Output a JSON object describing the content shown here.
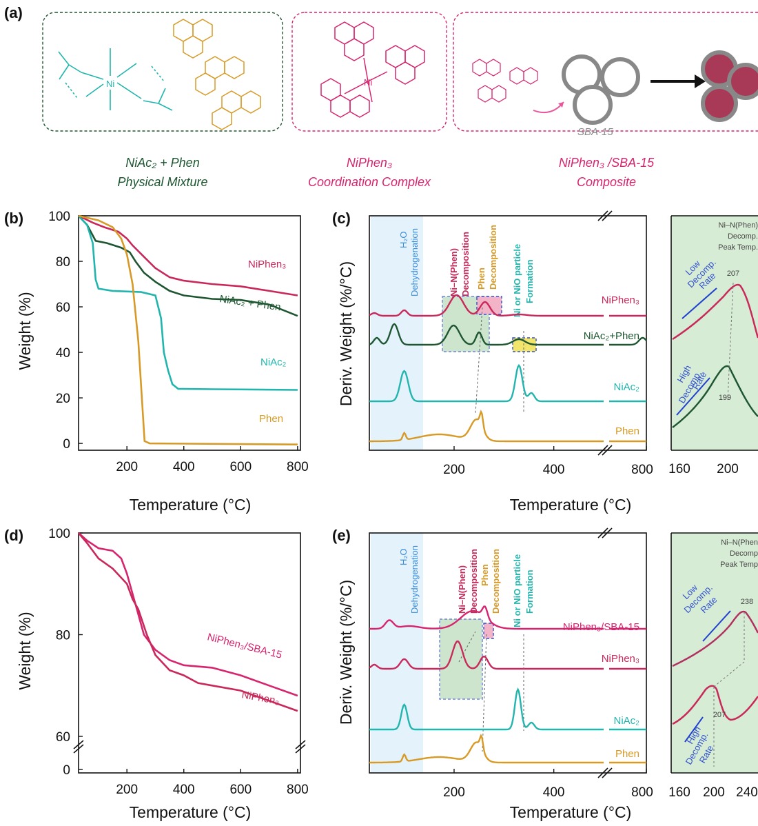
{
  "panels": {
    "a": {
      "label": "(a)",
      "sba_label": "SBA-15",
      "captions": [
        {
          "line1": "NiAc₂ + Phen",
          "line2": "Physical Mixture",
          "color": "#1e5631"
        },
        {
          "line1": "NiPhen₃",
          "line2": "Coordination Complex",
          "color": "#d6246e"
        },
        {
          "line1": "NiPhen₃ /SBA-15",
          "line2": "Composite",
          "color": "#d6246e"
        }
      ]
    },
    "b": {
      "label": "(b)",
      "xlabel": "Temperature (°C)",
      "ylabel": "Weight (%)"
    },
    "c": {
      "label": "(c)",
      "xlabel": "Temperature (°C)",
      "ylabel": "Deriv. Weight (%/°C)",
      "ann_h2o": "H₂O",
      "ann_dehyd": "Dehydrogenation",
      "ann_ninphen1": "Ni–N(Phen)",
      "ann_ninphen2": "Decomposition",
      "ann_phen1": "Phen",
      "ann_phen2": "Decomposition",
      "ann_nio1": "Ni or NiO particle",
      "ann_nio2": "Formation",
      "inset_title": [
        "Ni–N(Phen)",
        "Decomp.",
        "Peak Temp."
      ],
      "inset_low": [
        "Low",
        "Decomp.",
        "Rate"
      ],
      "inset_high": [
        "High",
        "Decomp.",
        "Rate"
      ],
      "inset_peak_top": "207",
      "inset_peak_bottom": "199"
    },
    "d": {
      "label": "(d)",
      "xlabel": "Temperature (°C)",
      "ylabel": "Weight (%)"
    },
    "e": {
      "label": "(e)",
      "xlabel": "Temperature (°C)",
      "ylabel": "Deriv. Weight (%/°C)",
      "ann_h2o": "H₂O",
      "ann_dehyd": "Dehydrogenation",
      "ann_ninphen1": "Ni–N(Phen)",
      "ann_ninphen2": "Decomposition",
      "ann_phen1": "Phen",
      "ann_phen2": "Decomposition",
      "ann_nio1": "Ni or NiO particle",
      "ann_nio2": "Formation",
      "inset_title": [
        "Ni–N(Phen",
        "Decomp",
        "Peak Temp"
      ],
      "inset_low": [
        "Low",
        "Decomp.",
        "Rate"
      ],
      "inset_high": [
        "High",
        "Decomp.",
        "Rate"
      ],
      "inset_peak_top": "238",
      "inset_peak_bottom": "207"
    }
  },
  "chart_data": [
    {
      "panel": "b",
      "type": "line",
      "xlabel": "Temperature (°C)",
      "ylabel": "Weight (%)",
      "xlim": [
        30,
        810
      ],
      "ylim": [
        -3,
        100
      ],
      "xticks": [
        200,
        400,
        600,
        800
      ],
      "yticks": [
        0,
        20,
        40,
        60,
        80,
        100
      ],
      "series": [
        {
          "name": "NiPhen₃",
          "color": "#c8285a",
          "points": [
            [
              30,
              100
            ],
            [
              80,
              97
            ],
            [
              120,
              95
            ],
            [
              170,
              93
            ],
            [
              200,
              90
            ],
            [
              220,
              87
            ],
            [
              260,
              82
            ],
            [
              300,
              77
            ],
            [
              350,
              73
            ],
            [
              400,
              71.5
            ],
            [
              500,
              70
            ],
            [
              600,
              69
            ],
            [
              700,
              67
            ],
            [
              800,
              65
            ]
          ]
        },
        {
          "name": "NiAc₂ + Phen",
          "color": "#1e5631",
          "points": [
            [
              30,
              100
            ],
            [
              60,
              96
            ],
            [
              90,
              89
            ],
            [
              130,
              88
            ],
            [
              180,
              86
            ],
            [
              210,
              84
            ],
            [
              230,
              80
            ],
            [
              260,
              75
            ],
            [
              300,
              71
            ],
            [
              350,
              67
            ],
            [
              400,
              65
            ],
            [
              500,
              63.5
            ],
            [
              600,
              63
            ],
            [
              700,
              61
            ],
            [
              760,
              58
            ],
            [
              800,
              56
            ]
          ]
        },
        {
          "name": "NiAc₂",
          "color": "#22b5ae",
          "points": [
            [
              30,
              100
            ],
            [
              60,
              96
            ],
            [
              80,
              88
            ],
            [
              90,
              72
            ],
            [
              100,
              68
            ],
            [
              150,
              67
            ],
            [
              250,
              66.5
            ],
            [
              300,
              65
            ],
            [
              320,
              55
            ],
            [
              330,
              40
            ],
            [
              345,
              32
            ],
            [
              360,
              26
            ],
            [
              380,
              24
            ],
            [
              500,
              23.8
            ],
            [
              800,
              23.5
            ]
          ]
        },
        {
          "name": "Phen",
          "color": "#d79a26",
          "points": [
            [
              30,
              100
            ],
            [
              100,
              98
            ],
            [
              150,
              95
            ],
            [
              180,
              90
            ],
            [
              200,
              83
            ],
            [
              220,
              70
            ],
            [
              240,
              45
            ],
            [
              255,
              15
            ],
            [
              262,
              1
            ],
            [
              280,
              0
            ],
            [
              800,
              -0.5
            ]
          ]
        }
      ]
    },
    {
      "panel": "c",
      "type": "line",
      "xlabel": "Temperature (°C)",
      "ylabel": "Deriv. Weight (%/°C)",
      "xticks": [
        200,
        400,
        800
      ],
      "series": [
        {
          "name": "NiPhen₃",
          "color": "#c8285a",
          "peaks": [
            {
              "x": 207,
              "label": "Ni–N(Phen)"
            },
            {
              "x": 260,
              "label": "Phen"
            }
          ]
        },
        {
          "name": "NiAc₂+Phen",
          "color": "#1e5631",
          "peaks": [
            {
              "x": 199
            },
            {
              "x": 250
            },
            {
              "x": 330
            }
          ]
        },
        {
          "name": "NiAc₂",
          "color": "#22b5ae",
          "peaks": [
            {
              "x": 100
            },
            {
              "x": 328
            },
            {
              "x": 355
            }
          ]
        },
        {
          "name": "Phen",
          "color": "#d79a26",
          "peaks": [
            {
              "x": 255
            }
          ]
        }
      ],
      "inset": {
        "xticks": [
          160,
          200
        ],
        "peak_top": 207,
        "peak_bottom": 199
      }
    },
    {
      "panel": "d",
      "type": "line",
      "xlabel": "Temperature (°C)",
      "ylabel": "Weight (%)",
      "xticks": [
        200,
        400,
        600,
        800
      ],
      "yticks": [
        0,
        60,
        80,
        100
      ],
      "axis_break": "between 0 and 60",
      "series": [
        {
          "name": "NiPhen₃/SBA-15",
          "color": "#d6246e",
          "points": [
            [
              30,
              100
            ],
            [
              60,
              98.5
            ],
            [
              100,
              97
            ],
            [
              150,
              96.5
            ],
            [
              180,
              95
            ],
            [
              200,
              92
            ],
            [
              230,
              86
            ],
            [
              260,
              80
            ],
            [
              300,
              77
            ],
            [
              350,
              75
            ],
            [
              400,
              74
            ],
            [
              500,
              73.5
            ],
            [
              600,
              72
            ],
            [
              700,
              70
            ],
            [
              800,
              68
            ]
          ]
        },
        {
          "name": "NiPhen₃",
          "color": "#c8285a",
          "points": [
            [
              30,
              100
            ],
            [
              60,
              98
            ],
            [
              100,
              95
            ],
            [
              150,
              93
            ],
            [
              200,
              90
            ],
            [
              220,
              87
            ],
            [
              240,
              85
            ],
            [
              270,
              80
            ],
            [
              300,
              76
            ],
            [
              350,
              73
            ],
            [
              400,
              72
            ],
            [
              450,
              70.5
            ],
            [
              500,
              70
            ],
            [
              600,
              69
            ],
            [
              700,
              67
            ],
            [
              800,
              65
            ]
          ]
        }
      ]
    },
    {
      "panel": "e",
      "type": "line",
      "xlabel": "Temperature (°C)",
      "ylabel": "Deriv. Weight (%/°C)",
      "xticks": [
        200,
        400,
        800
      ],
      "series": [
        {
          "name": "NiPhen₃/SBA-15",
          "color": "#d6246e",
          "peaks": [
            {
              "x": 238
            },
            {
              "x": 262
            }
          ]
        },
        {
          "name": "NiPhen₃",
          "color": "#c8285a",
          "peaks": [
            {
              "x": 207
            },
            {
              "x": 260
            }
          ]
        },
        {
          "name": "NiAc₂",
          "color": "#22b5ae",
          "peaks": [
            {
              "x": 100
            },
            {
              "x": 328
            },
            {
              "x": 355
            }
          ]
        },
        {
          "name": "Phen",
          "color": "#d79a26",
          "peaks": [
            {
              "x": 255
            }
          ]
        }
      ],
      "inset": {
        "xticks": [
          160,
          200,
          240
        ],
        "peak_top": 238,
        "peak_bottom": 207
      }
    }
  ]
}
